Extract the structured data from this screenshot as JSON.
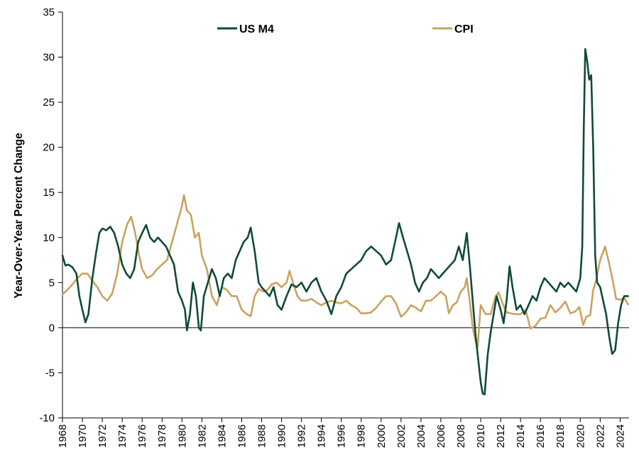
{
  "chart_data": {
    "type": "line",
    "ylabel": "Year-Over-Year Percent Change",
    "xlabel": "",
    "ylim": [
      -10,
      35
    ],
    "yticks": [
      -10,
      -5,
      0,
      5,
      10,
      15,
      20,
      25,
      30,
      35
    ],
    "xlim": [
      1968,
      2024.9
    ],
    "xticks": [
      1968,
      1970,
      1972,
      1974,
      1976,
      1978,
      1980,
      1982,
      1984,
      1986,
      1988,
      1990,
      1992,
      1994,
      1996,
      1998,
      2000,
      2002,
      2004,
      2006,
      2008,
      2010,
      2012,
      2014,
      2016,
      2018,
      2020,
      2022,
      2024
    ],
    "grid": false,
    "legend_position": "top-center",
    "series": [
      {
        "name": "US M4",
        "color": "#0f4a3a",
        "points": [
          [
            1968.0,
            8.0
          ],
          [
            1968.3,
            6.9
          ],
          [
            1968.6,
            7.0
          ],
          [
            1969.0,
            6.7
          ],
          [
            1969.4,
            6.0
          ],
          [
            1969.7,
            3.5
          ],
          [
            1970.0,
            2.0
          ],
          [
            1970.3,
            0.6
          ],
          [
            1970.6,
            1.5
          ],
          [
            1971.0,
            5.5
          ],
          [
            1971.4,
            8.5
          ],
          [
            1971.7,
            10.5
          ],
          [
            1972.0,
            11.0
          ],
          [
            1972.4,
            10.8
          ],
          [
            1972.8,
            11.2
          ],
          [
            1973.2,
            10.5
          ],
          [
            1973.6,
            9.0
          ],
          [
            1974.0,
            7.0
          ],
          [
            1974.4,
            6.0
          ],
          [
            1974.8,
            5.5
          ],
          [
            1975.2,
            6.5
          ],
          [
            1975.6,
            9.5
          ],
          [
            1976.0,
            10.5
          ],
          [
            1976.4,
            11.4
          ],
          [
            1976.8,
            10.0
          ],
          [
            1977.2,
            9.5
          ],
          [
            1977.6,
            10.0
          ],
          [
            1978.0,
            9.5
          ],
          [
            1978.4,
            9.0
          ],
          [
            1978.8,
            8.0
          ],
          [
            1979.2,
            7.0
          ],
          [
            1979.6,
            4.0
          ],
          [
            1980.0,
            3.0
          ],
          [
            1980.3,
            2.0
          ],
          [
            1980.5,
            -0.3
          ],
          [
            1980.8,
            1.5
          ],
          [
            1981.1,
            5.0
          ],
          [
            1981.4,
            3.5
          ],
          [
            1981.7,
            0.0
          ],
          [
            1981.9,
            -0.3
          ],
          [
            1982.2,
            3.5
          ],
          [
            1982.6,
            5.0
          ],
          [
            1983.0,
            6.5
          ],
          [
            1983.4,
            5.5
          ],
          [
            1983.8,
            3.5
          ],
          [
            1984.2,
            5.5
          ],
          [
            1984.6,
            6.0
          ],
          [
            1985.0,
            5.5
          ],
          [
            1985.4,
            7.5
          ],
          [
            1985.8,
            8.5
          ],
          [
            1986.2,
            9.5
          ],
          [
            1986.6,
            10.0
          ],
          [
            1986.9,
            11.1
          ],
          [
            1987.3,
            8.5
          ],
          [
            1987.7,
            5.0
          ],
          [
            1988.0,
            4.5
          ],
          [
            1988.4,
            4.0
          ],
          [
            1988.8,
            3.5
          ],
          [
            1989.2,
            4.5
          ],
          [
            1989.6,
            2.5
          ],
          [
            1990.0,
            2.0
          ],
          [
            1990.5,
            3.5
          ],
          [
            1991.0,
            4.8
          ],
          [
            1991.5,
            4.5
          ],
          [
            1992.0,
            5.0
          ],
          [
            1992.5,
            4.0
          ],
          [
            1993.0,
            5.0
          ],
          [
            1993.5,
            5.5
          ],
          [
            1994.0,
            4.0
          ],
          [
            1994.5,
            3.0
          ],
          [
            1995.0,
            1.5
          ],
          [
            1995.5,
            3.5
          ],
          [
            1996.0,
            4.5
          ],
          [
            1996.5,
            6.0
          ],
          [
            1997.0,
            6.5
          ],
          [
            1997.5,
            7.0
          ],
          [
            1998.0,
            7.5
          ],
          [
            1998.5,
            8.5
          ],
          [
            1999.0,
            9.0
          ],
          [
            1999.5,
            8.5
          ],
          [
            2000.0,
            8.0
          ],
          [
            2000.5,
            7.0
          ],
          [
            2001.0,
            7.5
          ],
          [
            2001.4,
            9.5
          ],
          [
            2001.8,
            11.6
          ],
          [
            2002.2,
            10.0
          ],
          [
            2002.6,
            8.5
          ],
          [
            2003.0,
            7.0
          ],
          [
            2003.4,
            5.0
          ],
          [
            2003.8,
            4.0
          ],
          [
            2004.2,
            5.0
          ],
          [
            2004.6,
            5.5
          ],
          [
            2005.0,
            6.5
          ],
          [
            2005.4,
            6.0
          ],
          [
            2005.8,
            5.5
          ],
          [
            2006.2,
            6.0
          ],
          [
            2006.6,
            6.5
          ],
          [
            2007.0,
            7.0
          ],
          [
            2007.4,
            7.5
          ],
          [
            2007.8,
            9.0
          ],
          [
            2008.2,
            7.5
          ],
          [
            2008.6,
            10.5
          ],
          [
            2008.9,
            7.0
          ],
          [
            2009.2,
            3.0
          ],
          [
            2009.5,
            -1.0
          ],
          [
            2009.8,
            -4.0
          ],
          [
            2010.0,
            -6.0
          ],
          [
            2010.2,
            -7.3
          ],
          [
            2010.4,
            -7.4
          ],
          [
            2010.7,
            -3.0
          ],
          [
            2011.0,
            -0.5
          ],
          [
            2011.3,
            1.5
          ],
          [
            2011.6,
            3.5
          ],
          [
            2012.0,
            2.0
          ],
          [
            2012.3,
            0.5
          ],
          [
            2012.6,
            3.0
          ],
          [
            2012.9,
            6.8
          ],
          [
            2013.2,
            4.5
          ],
          [
            2013.6,
            2.0
          ],
          [
            2014.0,
            2.5
          ],
          [
            2014.4,
            1.5
          ],
          [
            2014.8,
            2.5
          ],
          [
            2015.2,
            3.5
          ],
          [
            2015.6,
            3.0
          ],
          [
            2016.0,
            4.5
          ],
          [
            2016.4,
            5.5
          ],
          [
            2016.8,
            5.0
          ],
          [
            2017.2,
            4.5
          ],
          [
            2017.6,
            4.0
          ],
          [
            2018.0,
            5.0
          ],
          [
            2018.4,
            4.5
          ],
          [
            2018.8,
            5.0
          ],
          [
            2019.2,
            4.5
          ],
          [
            2019.6,
            4.0
          ],
          [
            2020.0,
            5.5
          ],
          [
            2020.2,
            9.0
          ],
          [
            2020.35,
            22.0
          ],
          [
            2020.5,
            30.9
          ],
          [
            2020.7,
            29.5
          ],
          [
            2020.9,
            27.5
          ],
          [
            2021.1,
            28.0
          ],
          [
            2021.3,
            20.0
          ],
          [
            2021.5,
            8.0
          ],
          [
            2021.7,
            5.0
          ],
          [
            2022.0,
            4.5
          ],
          [
            2022.3,
            3.0
          ],
          [
            2022.6,
            1.5
          ],
          [
            2022.9,
            -1.0
          ],
          [
            2023.2,
            -2.9
          ],
          [
            2023.5,
            -2.5
          ],
          [
            2023.8,
            0.5
          ],
          [
            2024.1,
            2.5
          ],
          [
            2024.4,
            3.5
          ],
          [
            2024.8,
            3.5
          ]
        ]
      },
      {
        "name": "CPI",
        "color": "#c9a35f",
        "points": [
          [
            1968.0,
            3.7
          ],
          [
            1968.5,
            4.2
          ],
          [
            1969.0,
            4.8
          ],
          [
            1969.5,
            5.5
          ],
          [
            1970.0,
            6.0
          ],
          [
            1970.5,
            6.0
          ],
          [
            1971.0,
            5.2
          ],
          [
            1971.5,
            4.5
          ],
          [
            1972.0,
            3.5
          ],
          [
            1972.5,
            3.0
          ],
          [
            1973.0,
            3.8
          ],
          [
            1973.5,
            6.0
          ],
          [
            1974.0,
            9.5
          ],
          [
            1974.5,
            11.5
          ],
          [
            1974.9,
            12.3
          ],
          [
            1975.3,
            10.5
          ],
          [
            1975.7,
            8.0
          ],
          [
            1976.0,
            6.5
          ],
          [
            1976.5,
            5.5
          ],
          [
            1977.0,
            5.8
          ],
          [
            1977.5,
            6.5
          ],
          [
            1978.0,
            7.0
          ],
          [
            1978.5,
            7.5
          ],
          [
            1979.0,
            9.5
          ],
          [
            1979.5,
            11.5
          ],
          [
            1980.0,
            13.5
          ],
          [
            1980.2,
            14.7
          ],
          [
            1980.5,
            13.0
          ],
          [
            1980.9,
            12.5
          ],
          [
            1981.3,
            10.0
          ],
          [
            1981.7,
            10.5
          ],
          [
            1982.0,
            8.0
          ],
          [
            1982.5,
            6.5
          ],
          [
            1983.0,
            3.5
          ],
          [
            1983.5,
            2.5
          ],
          [
            1984.0,
            4.5
          ],
          [
            1984.5,
            4.2
          ],
          [
            1985.0,
            3.5
          ],
          [
            1985.5,
            3.5
          ],
          [
            1986.0,
            2.0
          ],
          [
            1986.5,
            1.5
          ],
          [
            1986.9,
            1.3
          ],
          [
            1987.3,
            3.5
          ],
          [
            1987.7,
            4.3
          ],
          [
            1988.2,
            4.0
          ],
          [
            1988.6,
            4.2
          ],
          [
            1989.0,
            4.8
          ],
          [
            1989.5,
            5.0
          ],
          [
            1990.0,
            4.5
          ],
          [
            1990.5,
            5.0
          ],
          [
            1990.8,
            6.3
          ],
          [
            1991.2,
            4.8
          ],
          [
            1991.6,
            3.5
          ],
          [
            1992.0,
            3.0
          ],
          [
            1992.5,
            3.0
          ],
          [
            1993.0,
            3.2
          ],
          [
            1993.5,
            2.8
          ],
          [
            1994.0,
            2.5
          ],
          [
            1994.5,
            2.8
          ],
          [
            1995.0,
            3.0
          ],
          [
            1995.5,
            2.8
          ],
          [
            1996.0,
            2.7
          ],
          [
            1996.5,
            3.0
          ],
          [
            1997.0,
            2.5
          ],
          [
            1997.5,
            2.2
          ],
          [
            1998.0,
            1.6
          ],
          [
            1998.5,
            1.6
          ],
          [
            1999.0,
            1.7
          ],
          [
            1999.5,
            2.2
          ],
          [
            2000.0,
            2.9
          ],
          [
            2000.5,
            3.5
          ],
          [
            2001.0,
            3.5
          ],
          [
            2001.5,
            2.7
          ],
          [
            2002.0,
            1.2
          ],
          [
            2002.5,
            1.7
          ],
          [
            2003.0,
            2.5
          ],
          [
            2003.5,
            2.2
          ],
          [
            2004.0,
            1.8
          ],
          [
            2004.5,
            3.0
          ],
          [
            2005.0,
            3.0
          ],
          [
            2005.5,
            3.5
          ],
          [
            2006.0,
            4.0
          ],
          [
            2006.5,
            3.5
          ],
          [
            2006.8,
            1.6
          ],
          [
            2007.2,
            2.5
          ],
          [
            2007.6,
            2.8
          ],
          [
            2008.0,
            4.0
          ],
          [
            2008.4,
            4.5
          ],
          [
            2008.6,
            5.5
          ],
          [
            2008.9,
            3.0
          ],
          [
            2009.2,
            0.0
          ],
          [
            2009.5,
            -1.5
          ],
          [
            2009.7,
            -2.1
          ],
          [
            2010.0,
            2.5
          ],
          [
            2010.5,
            1.5
          ],
          [
            2011.0,
            1.5
          ],
          [
            2011.5,
            3.5
          ],
          [
            2011.8,
            3.9
          ],
          [
            2012.2,
            2.7
          ],
          [
            2012.6,
            1.7
          ],
          [
            2013.0,
            1.6
          ],
          [
            2013.5,
            1.5
          ],
          [
            2014.0,
            1.5
          ],
          [
            2014.5,
            2.0
          ],
          [
            2015.0,
            -0.1
          ],
          [
            2015.5,
            0.2
          ],
          [
            2016.0,
            1.0
          ],
          [
            2016.5,
            1.1
          ],
          [
            2017.0,
            2.5
          ],
          [
            2017.5,
            1.7
          ],
          [
            2018.0,
            2.2
          ],
          [
            2018.5,
            2.9
          ],
          [
            2019.0,
            1.6
          ],
          [
            2019.5,
            1.8
          ],
          [
            2019.9,
            2.3
          ],
          [
            2020.3,
            0.3
          ],
          [
            2020.6,
            1.2
          ],
          [
            2021.0,
            1.4
          ],
          [
            2021.3,
            4.2
          ],
          [
            2021.6,
            5.3
          ],
          [
            2022.0,
            7.5
          ],
          [
            2022.5,
            9.0
          ],
          [
            2022.9,
            7.1
          ],
          [
            2023.3,
            5.0
          ],
          [
            2023.6,
            3.2
          ],
          [
            2024.0,
            3.1
          ],
          [
            2024.4,
            3.3
          ],
          [
            2024.8,
            2.6
          ]
        ]
      }
    ]
  }
}
